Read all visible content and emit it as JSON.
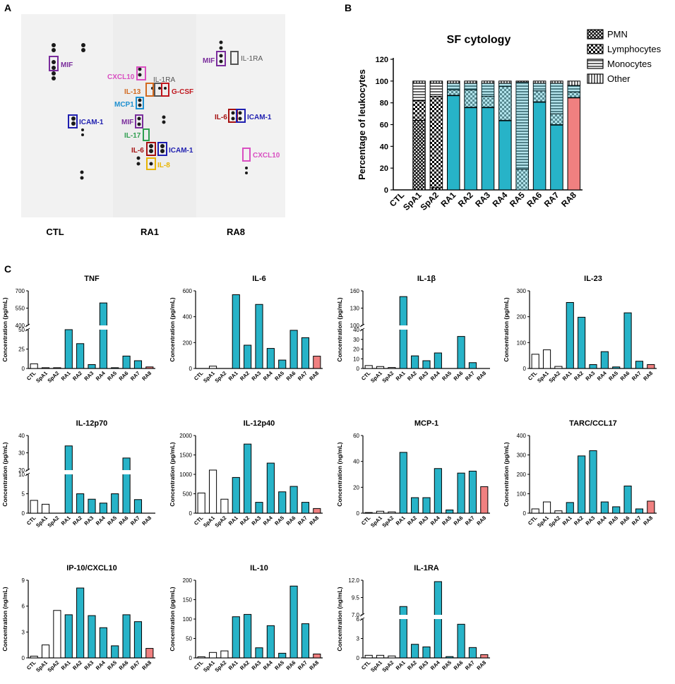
{
  "panel_labels": {
    "a": "A",
    "b": "B",
    "c": "C"
  },
  "colors": {
    "ra": "#27B3C8",
    "ra8": "#F08080",
    "ctl": "#FFFFFF",
    "membrane": "#F2F2F2",
    "spot": "#222222",
    "mif": "#7A2D9C",
    "cxcl10": "#D94FC1",
    "il1ra": "#555555",
    "il13": "#D2691E",
    "gcsf": "#C0161D",
    "mcp1": "#1E90D0",
    "icam1": "#1F1FB0",
    "il17": "#2E9E4F",
    "il6": "#A51010",
    "il8": "#E8B400"
  },
  "panel_a": {
    "blots": [
      {
        "label": "CTL",
        "annotations": [
          "MIF",
          "ICAM-1"
        ]
      },
      {
        "label": "RA1",
        "annotations": [
          "CXCL10",
          "IL-1RA",
          "IL-13",
          "G-CSF",
          "MCP1",
          "MIF",
          "IL-17",
          "IL-6",
          "ICAM-1",
          "IL-8"
        ]
      },
      {
        "label": "RA8",
        "annotations": [
          "MIF",
          "IL-1RA",
          "IL-6",
          "ICAM-1",
          "CXCL10"
        ]
      }
    ]
  },
  "chart_data": [
    {
      "id": "b",
      "type": "bar",
      "stacked": true,
      "title": "SF cytology",
      "xlabel": "",
      "ylabel": "Percentage of leukocytes",
      "ylim": [
        0,
        120
      ],
      "yticks": [
        0,
        20,
        40,
        60,
        80,
        100,
        120
      ],
      "categories": [
        "CTL",
        "SpA1",
        "SpA2",
        "RA1",
        "RA2",
        "RA3",
        "RA4",
        "RA5",
        "RA6",
        "RA7",
        "RA8"
      ],
      "legend": [
        "PMN",
        "Lymphocytes",
        "Monocytes",
        "Other"
      ],
      "legend_position": "right",
      "series": [
        {
          "name": "PMN",
          "values": [
            0,
            64,
            2,
            87,
            76,
            76,
            64,
            0,
            81,
            60,
            85
          ]
        },
        {
          "name": "Lymphocytes",
          "values": [
            0,
            18,
            84,
            5,
            16,
            10,
            31,
            19,
            10,
            10,
            5
          ]
        },
        {
          "name": "Monocytes",
          "values": [
            0,
            16,
            12,
            6,
            6,
            12,
            3,
            80,
            7,
            28,
            6
          ]
        },
        {
          "name": "Other",
          "values": [
            0,
            2,
            2,
            2,
            2,
            2,
            2,
            1,
            2,
            2,
            4
          ]
        }
      ]
    },
    {
      "id": "c1",
      "type": "bar",
      "title": "TNF",
      "ylabel": "Concentration (pg/mL)",
      "categories": [
        "CTL",
        "SpA1",
        "SpA2",
        "RA1",
        "RA2",
        "RA3",
        "RA4",
        "RA5",
        "RA6",
        "RA7",
        "RA8"
      ],
      "values": [
        6,
        1,
        1,
        70,
        32,
        5,
        595,
        1,
        16,
        10,
        2
      ],
      "broken_axis": {
        "lower": [
          0,
          50
        ],
        "upper": [
          400,
          700
        ]
      },
      "tick_labels": [
        "0",
        "25",
        "50",
        "400",
        "550",
        "700"
      ],
      "ylim": [
        0,
        700
      ]
    },
    {
      "id": "c2",
      "type": "bar",
      "title": "IL-6",
      "ylabel": "Concentration (pg/mL)",
      "categories": [
        "CTL",
        "SpA1",
        "SpA2",
        "RA1",
        "RA2",
        "RA3",
        "RA4",
        "RA5",
        "RA6",
        "RA7",
        "RA8"
      ],
      "values": [
        0,
        18,
        0,
        570,
        180,
        495,
        155,
        65,
        295,
        238,
        95
      ],
      "tick_labels": [
        "0",
        "200",
        "400",
        "600"
      ],
      "ylim": [
        0,
        600
      ]
    },
    {
      "id": "c3",
      "type": "bar",
      "title": "IL-1β",
      "ylabel": "Concentration (pg/mL)",
      "categories": [
        "CTL",
        "SpA1",
        "SpA2",
        "RA1",
        "RA2",
        "RA3",
        "RA4",
        "RA5",
        "RA6",
        "RA7",
        "RA8"
      ],
      "values": [
        3,
        2,
        1,
        150,
        13,
        8,
        16,
        0,
        33,
        6,
        0
      ],
      "broken_axis": {
        "lower": [
          0,
          40
        ],
        "upper": [
          100,
          160
        ]
      },
      "tick_labels": [
        "0",
        "10",
        "20",
        "30",
        "40",
        "100",
        "130",
        "160"
      ],
      "ylim": [
        0,
        160
      ]
    },
    {
      "id": "c4",
      "type": "bar",
      "title": "IL-23",
      "ylabel": "Concentration (pg/mL)",
      "categories": [
        "CTL",
        "SpA1",
        "SpA2",
        "RA1",
        "RA2",
        "RA3",
        "RA4",
        "RA5",
        "RA6",
        "RA7",
        "RA8"
      ],
      "values": [
        55,
        72,
        8,
        255,
        198,
        15,
        65,
        6,
        215,
        28,
        15
      ],
      "tick_labels": [
        "0",
        "100",
        "200",
        "300"
      ],
      "ylim": [
        0,
        300
      ]
    },
    {
      "id": "c5",
      "type": "bar",
      "title": "IL-12p70",
      "ylabel": "Concentration (pg/mL)",
      "categories": [
        "CTL",
        "SpA1",
        "SpA2",
        "RA1",
        "RA2",
        "RA3",
        "RA4",
        "RA5",
        "RA6",
        "RA7",
        "RA8"
      ],
      "values": [
        3.3,
        2.3,
        0,
        34,
        5,
        3.6,
        2.6,
        5,
        27,
        3.5,
        0
      ],
      "broken_axis": {
        "lower": [
          0,
          10
        ],
        "upper": [
          20,
          40
        ]
      },
      "tick_labels": [
        "0",
        "5",
        "10",
        "20",
        "30",
        "40"
      ],
      "ylim": [
        0,
        40
      ]
    },
    {
      "id": "c6",
      "type": "bar",
      "title": "IL-12p40",
      "ylabel": "Concentration (pg/mL)",
      "categories": [
        "CTL",
        "SpA1",
        "SpA2",
        "RA1",
        "RA2",
        "RA3",
        "RA4",
        "RA5",
        "RA6",
        "RA7",
        "RA8"
      ],
      "values": [
        520,
        1110,
        360,
        920,
        1780,
        280,
        1290,
        550,
        690,
        280,
        120
      ],
      "tick_labels": [
        "0",
        "500",
        "1000",
        "1500",
        "2000"
      ],
      "ylim": [
        0,
        2000
      ]
    },
    {
      "id": "c7",
      "type": "bar",
      "title": "MCP-1",
      "ylabel": "Concentration (ng/mL)",
      "categories": [
        "CTL",
        "SpA1",
        "SpA2",
        "RA1",
        "RA2",
        "RA3",
        "RA4",
        "RA5",
        "RA6",
        "RA7",
        "RA8"
      ],
      "values": [
        0.5,
        1.5,
        1,
        47,
        12,
        12,
        34.5,
        2.5,
        31,
        32.5,
        20.5
      ],
      "tick_labels": [
        "0",
        "20",
        "40",
        "60"
      ],
      "ylim": [
        0,
        60
      ]
    },
    {
      "id": "c8",
      "type": "bar",
      "title": "TARC/CCL17",
      "ylabel": "Concentration (pg/mL)",
      "categories": [
        "CTL",
        "SpA1",
        "SpA2",
        "RA1",
        "RA2",
        "RA3",
        "RA4",
        "RA5",
        "RA6",
        "RA7",
        "RA8"
      ],
      "values": [
        22,
        58,
        12,
        55,
        295,
        322,
        58,
        33,
        140,
        22,
        62
      ],
      "tick_labels": [
        "0",
        "100",
        "200",
        "300",
        "400"
      ],
      "ylim": [
        0,
        400
      ]
    },
    {
      "id": "c9",
      "type": "bar",
      "title": "IP-10/CXCL10",
      "ylabel": "Concentration (ng/mL)",
      "categories": [
        "CTL",
        "SpA1",
        "SpA2",
        "RA1",
        "RA2",
        "RA3",
        "RA4",
        "RA5",
        "RA6",
        "RA7",
        "RA8"
      ],
      "values": [
        0.2,
        1.5,
        5.5,
        5,
        8.1,
        4.9,
        3.5,
        1.4,
        5,
        4.2,
        1.1
      ],
      "tick_labels": [
        "0",
        "3",
        "6",
        "9"
      ],
      "ylim": [
        0,
        9
      ]
    },
    {
      "id": "c10",
      "type": "bar",
      "title": "IL-10",
      "ylabel": "Concentration (pg/mL)",
      "categories": [
        "CTL",
        "SpA1",
        "SpA2",
        "RA1",
        "RA2",
        "RA3",
        "RA4",
        "RA5",
        "RA6",
        "RA7",
        "RA8"
      ],
      "values": [
        3,
        14,
        18,
        106,
        112,
        26,
        83,
        12,
        185,
        88,
        10
      ],
      "tick_labels": [
        "0",
        "50",
        "100",
        "150",
        "200"
      ],
      "ylim": [
        0,
        200
      ]
    },
    {
      "id": "c11",
      "type": "bar",
      "title": "IL-1RA",
      "ylabel": "Concentration (ng/mL)",
      "categories": [
        "CTL",
        "SpA1",
        "SpA2",
        "RA1",
        "RA2",
        "RA3",
        "RA4",
        "RA5",
        "RA6",
        "RA7",
        "RA8"
      ],
      "values": [
        0.4,
        0.4,
        0.3,
        8.2,
        2.1,
        1.7,
        11.8,
        0.2,
        5.2,
        1.6,
        0.5
      ],
      "broken_axis": {
        "lower": [
          0,
          6
        ],
        "upper": [
          7,
          12
        ]
      },
      "tick_labels": [
        "0",
        "3",
        "6",
        "7.0",
        "9.5",
        "12.0"
      ],
      "ylim": [
        0,
        12
      ]
    }
  ]
}
